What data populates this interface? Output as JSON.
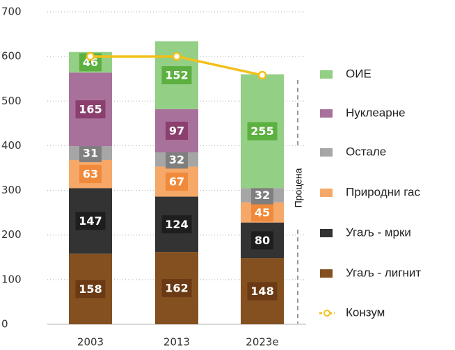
{
  "chart_data": {
    "type": "stacked-bar-line",
    "categories": [
      "2003",
      "2013",
      "2023e"
    ],
    "series": [
      {
        "name": "Угаљ - лигнит",
        "color": "#84501f",
        "label_color": "#6b3a14",
        "values": [
          158,
          162,
          148
        ]
      },
      {
        "name": "Угаљ - мрки",
        "color": "#333333",
        "label_color": "#1e1e1e",
        "values": [
          147,
          124,
          80
        ]
      },
      {
        "name": "Природни гас",
        "color": "#f6a868",
        "label_color": "#f08a3a",
        "values": [
          63,
          67,
          45
        ]
      },
      {
        "name": "Остале",
        "color": "#a6a6a6",
        "label_color": "#7f7f7f",
        "values": [
          31,
          32,
          32
        ]
      },
      {
        "name": "Нуклеарне",
        "color": "#a8719b",
        "label_color": "#8a3f6e",
        "values": [
          165,
          97,
          null
        ]
      },
      {
        "name": "ОИЕ",
        "color": "#93cf84",
        "label_color": "#5cb040",
        "values": [
          46,
          152,
          255
        ]
      }
    ],
    "line": {
      "name": "Конзум",
      "color": "#f2c01a",
      "values": [
        600,
        600,
        558
      ]
    },
    "annotation": "Процена",
    "ylim": [
      0,
      700
    ],
    "yticks": [
      0,
      100,
      200,
      300,
      400,
      500,
      600,
      700
    ],
    "grid": true
  }
}
